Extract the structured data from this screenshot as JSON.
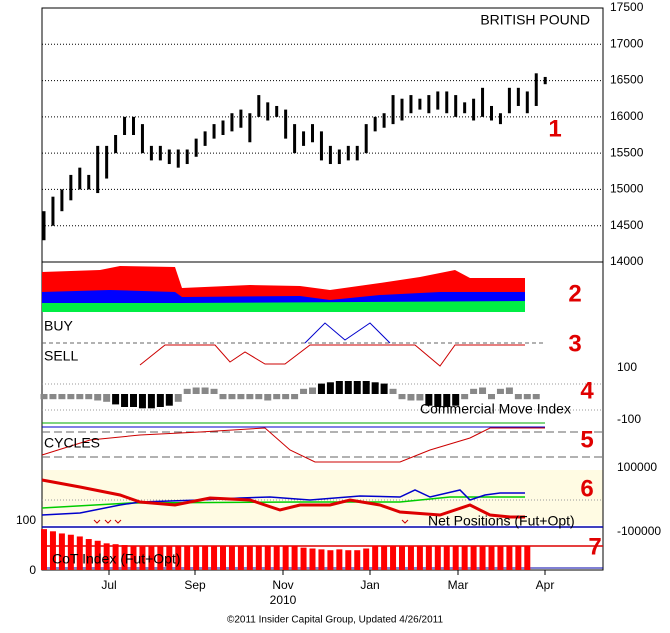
{
  "chart_data": [
    {
      "type": "ohlc",
      "title": "BRITISH POUND",
      "lows": [
        14300,
        14500,
        14700,
        14850,
        15000,
        15000,
        14950,
        15150,
        15500,
        15750,
        15750,
        15500,
        15400,
        15400,
        15350,
        15300,
        15350,
        15450,
        15600,
        15700,
        15750,
        15800,
        15850,
        15650,
        16000,
        15950,
        16000,
        15700,
        15500,
        15600,
        15650,
        15400,
        15350,
        15350,
        15400,
        15400,
        15500,
        15800,
        15850,
        15900,
        15950,
        16050,
        16100,
        16050,
        16100,
        16050,
        16000,
        16050,
        15950,
        16000,
        15950,
        15900,
        16050,
        16150,
        16050,
        16150,
        16450
      ],
      "highs": [
        14700,
        14900,
        15000,
        15200,
        15300,
        15200,
        15600,
        15600,
        15750,
        16000,
        16000,
        15900,
        15600,
        15600,
        15550,
        15550,
        15550,
        15700,
        15800,
        15900,
        15950,
        16050,
        16100,
        16050,
        16300,
        16200,
        16150,
        16100,
        15900,
        15800,
        15900,
        15800,
        15600,
        15550,
        15600,
        15600,
        15900,
        16000,
        16050,
        16300,
        16250,
        16300,
        16250,
        16300,
        16350,
        16350,
        16300,
        16200,
        16250,
        16400,
        16150,
        16050,
        16400,
        16400,
        16350,
        16600,
        16550
      ],
      "color": "#000000",
      "ylim": [
        14000,
        17500
      ],
      "yticks": [
        14000,
        14500,
        15000,
        15500,
        16000,
        16500,
        17000,
        17500
      ],
      "grid": true,
      "xtick_labels": [
        "Jul",
        "Sep",
        "Nov",
        "Jan",
        "Mar",
        "Apr"
      ],
      "year_label": "2010"
    },
    {
      "type": "bar",
      "title": "Commercial Move Index",
      "values": [
        -20,
        -20,
        -20,
        -20,
        -20,
        -20,
        -25,
        -30,
        -40,
        -50,
        -50,
        -55,
        -55,
        -50,
        -45,
        -30,
        20,
        25,
        25,
        20,
        -20,
        -20,
        -20,
        -20,
        -20,
        -25,
        -20,
        -20,
        -20,
        20,
        25,
        40,
        45,
        50,
        50,
        50,
        50,
        45,
        40,
        20,
        -20,
        -25,
        -25,
        -45,
        -50,
        -50,
        -45,
        -20,
        20,
        25,
        -20,
        20,
        25,
        -20,
        -20,
        -20
      ],
      "color": "#888888",
      "highlight_color": "#000000",
      "highlight_threshold": 40,
      "ylim": [
        -100,
        100
      ],
      "yticks": [
        -100,
        100
      ]
    },
    {
      "type": "bar",
      "title": "CoT Index (Fut+Opt)",
      "values": [
        95,
        90,
        85,
        82,
        78,
        72,
        68,
        62,
        60,
        58,
        56,
        56,
        56,
        56,
        56,
        56,
        56,
        56,
        56,
        56,
        56,
        56,
        56,
        56,
        56,
        56,
        56,
        56,
        56,
        52,
        50,
        48,
        46,
        48,
        46,
        46,
        50,
        56,
        56,
        56,
        56,
        56,
        56,
        56,
        56,
        56,
        56,
        56,
        56,
        56,
        56,
        56,
        56,
        56,
        56
      ],
      "color": "#ff0000",
      "ylim": [
        0,
        100
      ],
      "yticks": [
        0,
        100
      ]
    }
  ],
  "panel_numbers": [
    "1",
    "2",
    "3",
    "4",
    "5",
    "6",
    "7"
  ],
  "panel_labels": {
    "buy": "BUY",
    "sell": "SELL",
    "cycles": "CYCLES",
    "net": "Net Positions (Fut+Opt)"
  },
  "net_ticks": [
    -100000,
    100000
  ],
  "footer": "©2011 Insider Capital Group, Updated 4/26/2011"
}
